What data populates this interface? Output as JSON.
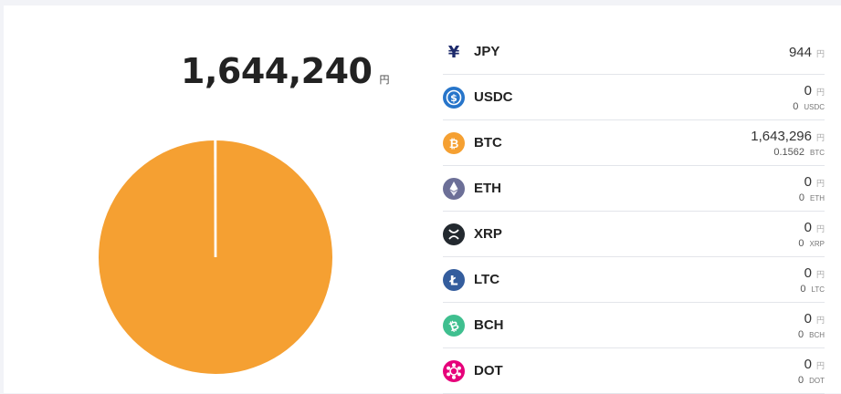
{
  "total": {
    "value": "1,644,240",
    "unit": "円"
  },
  "colors": {
    "btc": "#f5a032",
    "divider": "#ffffff"
  },
  "chart_data": {
    "type": "pie",
    "categories": [
      "BTC",
      "JPY",
      "USDC",
      "ETH",
      "XRP",
      "LTC",
      "BCH",
      "DOT"
    ],
    "values": [
      1643296,
      944,
      0,
      0,
      0,
      0,
      0,
      0
    ],
    "colors": [
      "#f5a032",
      "#1d2a6b",
      "#2775ca",
      "#6c6f97",
      "#23292f",
      "#345d9d",
      "#3fbf8f",
      "#e6007a"
    ]
  },
  "assets": [
    {
      "symbol": "JPY",
      "icon": "yen-icon",
      "value": "944",
      "unit": "円",
      "sub_value": "",
      "sub_unit": ""
    },
    {
      "symbol": "USDC",
      "icon": "usdc-icon",
      "value": "0",
      "unit": "円",
      "sub_value": "0",
      "sub_unit": "USDC"
    },
    {
      "symbol": "BTC",
      "icon": "bitcoin-icon",
      "value": "1,643,296",
      "unit": "円",
      "sub_value": "0.1562",
      "sub_unit": "BTC"
    },
    {
      "symbol": "ETH",
      "icon": "ethereum-icon",
      "value": "0",
      "unit": "円",
      "sub_value": "0",
      "sub_unit": "ETH"
    },
    {
      "symbol": "XRP",
      "icon": "xrp-icon",
      "value": "0",
      "unit": "円",
      "sub_value": "0",
      "sub_unit": "XRP"
    },
    {
      "symbol": "LTC",
      "icon": "litecoin-icon",
      "value": "0",
      "unit": "円",
      "sub_value": "0",
      "sub_unit": "LTC"
    },
    {
      "symbol": "BCH",
      "icon": "bitcoin-cash-icon",
      "value": "0",
      "unit": "円",
      "sub_value": "0",
      "sub_unit": "BCH"
    },
    {
      "symbol": "DOT",
      "icon": "polkadot-icon",
      "value": "0",
      "unit": "円",
      "sub_value": "0",
      "sub_unit": "DOT"
    }
  ]
}
